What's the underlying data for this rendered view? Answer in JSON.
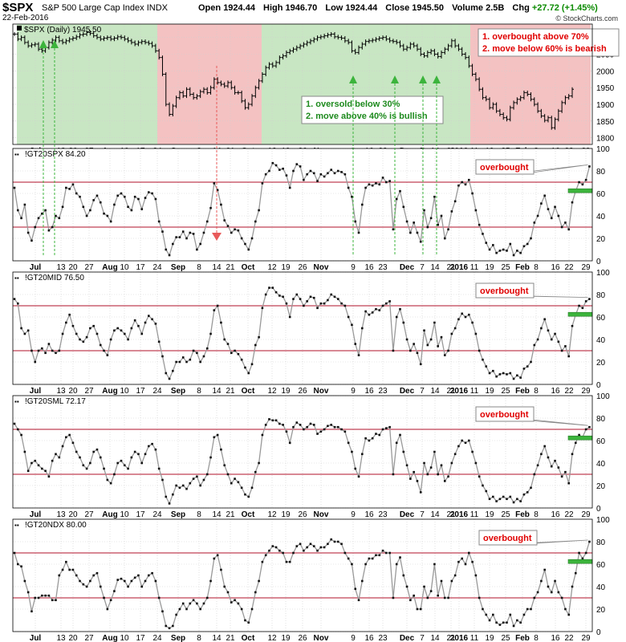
{
  "header": {
    "symbol": "$SPX",
    "name": "S&P 500 Large Cap Index",
    "exchange": "INDX",
    "date": "22-Feb-2016",
    "open_label": "Open",
    "open": "1924.44",
    "high_label": "High",
    "high": "1946.70",
    "low_label": "Low",
    "low": "1924.44",
    "close_label": "Close",
    "close": "1945.50",
    "volume_label": "Volume",
    "volume": "2.5B",
    "chg_label": "Chg",
    "chg": "+27.72 (+1.45%)",
    "credit": "© StockCharts.com"
  },
  "colors": {
    "green_zone": "#c8e6c3",
    "red_zone": "#f4c2c2",
    "ref_line": "#b0102a",
    "series_line": "#999999",
    "marker": "#111111",
    "green_arrow": "#3cb43c",
    "red_arrow": "#e85a5a",
    "callout_text": "#e00000",
    "bullish_text": "#1d8a1d"
  },
  "chart_data": [
    {
      "type": "ohlc",
      "panel": "price",
      "title": "$SPX (Daily) 1945.50",
      "x_tick_labels": [
        "Jul",
        "13",
        "20",
        "27",
        "Aug",
        "10",
        "17",
        "24",
        "Sep",
        "8",
        "14",
        "21",
        "Oct",
        "12",
        "19",
        "26",
        "Nov",
        "9",
        "16",
        "23",
        "Dec",
        "7",
        "14",
        "21",
        "2016",
        "11",
        "19",
        "25",
        "Feb",
        "8",
        "16",
        "22",
        "29"
      ],
      "y_ticks": [
        1800,
        1850,
        1900,
        1950,
        2000,
        2050,
        2100
      ],
      "ylim": [
        1780,
        2140
      ],
      "closes": [
        2110,
        2095,
        2100,
        2085,
        2075,
        2078,
        2080,
        2065,
        2060,
        2070,
        2085,
        2092,
        2100,
        2090,
        2085,
        2090,
        2095,
        2098,
        2102,
        2108,
        2110,
        2115,
        2112,
        2105,
        2100,
        2095,
        2098,
        2100,
        2095,
        2098,
        2102,
        2100,
        2095,
        2090,
        2085,
        2080,
        2085,
        2088,
        2085,
        2082,
        2075,
        2060,
        2040,
        1990,
        1900,
        1870,
        1895,
        1920,
        1935,
        1925,
        1945,
        1930,
        1920,
        1925,
        1938,
        1945,
        1935,
        1950,
        1975,
        1965,
        1960,
        1955,
        1965,
        1950,
        1935,
        1935,
        1910,
        1890,
        1900,
        1925,
        1950,
        1970,
        1990,
        2010,
        2020,
        2015,
        2025,
        2040,
        2045,
        2055,
        2060,
        2065,
        2070,
        2075,
        2080,
        2085,
        2090,
        2095,
        2100,
        2102,
        2105,
        2108,
        2110,
        2102,
        2100,
        2098,
        2090,
        2085,
        2060,
        2055,
        2070,
        2080,
        2088,
        2090,
        2092,
        2095,
        2098,
        2100,
        2095,
        2090,
        2088,
        2085,
        2075,
        2065,
        2070,
        2080,
        2075,
        2065,
        2050,
        2045,
        2055,
        2060,
        2050,
        2043,
        2055,
        2065,
        2075,
        2090,
        2075,
        2065,
        2050,
        2040,
        2015,
        1990,
        1975,
        1945,
        1920,
        1915,
        1890,
        1900,
        1880,
        1870,
        1860,
        1855,
        1890,
        1905,
        1915,
        1920,
        1935,
        1930,
        1915,
        1900,
        1880,
        1865,
        1852,
        1860,
        1830,
        1855,
        1880,
        1905,
        1920,
        1925,
        1945
      ],
      "annotations": [
        "1. oversold below 30%",
        "2. move above 40% is bullish",
        "1. overbought above 70%",
        "2. move below 60% is bearish"
      ]
    },
    {
      "type": "line",
      "panel": "indicator",
      "title": "!GT20SPX 84.20",
      "ylim": [
        0,
        100
      ],
      "y_ticks": [
        0,
        20,
        40,
        60,
        80,
        100
      ],
      "reference_lines": [
        30,
        70
      ],
      "annotation": "overbought",
      "values": [
        65,
        45,
        38,
        50,
        25,
        18,
        30,
        38,
        42,
        45,
        27,
        30,
        40,
        38,
        48,
        65,
        64,
        68,
        60,
        57,
        48,
        40,
        45,
        54,
        58,
        52,
        42,
        40,
        35,
        50,
        58,
        60,
        57,
        48,
        45,
        57,
        55,
        46,
        56,
        61,
        60,
        55,
        35,
        26,
        10,
        5,
        15,
        21,
        21,
        26,
        20,
        25,
        24,
        10,
        15,
        25,
        35,
        47,
        69,
        63,
        50,
        36,
        31,
        25,
        28,
        27,
        20,
        15,
        10,
        20,
        35,
        45,
        69,
        77,
        80,
        87,
        85,
        81,
        82,
        76,
        65,
        80,
        86,
        84,
        72,
        77,
        80,
        78,
        71,
        77,
        75,
        78,
        81,
        78,
        80,
        79,
        77,
        65,
        57,
        35,
        25,
        50,
        65,
        68,
        67,
        69,
        68,
        74,
        70,
        71,
        28,
        55,
        62,
        48,
        35,
        25,
        34,
        25,
        17,
        45,
        30,
        38,
        57,
        32,
        40,
        20,
        28,
        44,
        53,
        67,
        70,
        68,
        72,
        60,
        45,
        32,
        24,
        16,
        10,
        14,
        7,
        9,
        10,
        9,
        15,
        5,
        9,
        7,
        13,
        15,
        20,
        34,
        40,
        51,
        58,
        46,
        38,
        48,
        40,
        30,
        34,
        28,
        52,
        62,
        70,
        68,
        72,
        84
      ]
    },
    {
      "type": "line",
      "panel": "indicator",
      "title": "!GT20MID 76.50",
      "ylim": [
        0,
        100
      ],
      "y_ticks": [
        0,
        20,
        40,
        60,
        80,
        100
      ],
      "reference_lines": [
        30,
        70
      ],
      "annotation": "overbought",
      "values": [
        76,
        72,
        50,
        45,
        48,
        30,
        20,
        30,
        32,
        28,
        36,
        30,
        28,
        30,
        45,
        55,
        62,
        52,
        45,
        40,
        38,
        42,
        50,
        52,
        45,
        35,
        30,
        26,
        40,
        48,
        50,
        48,
        45,
        40,
        50,
        57,
        52,
        45,
        55,
        61,
        58,
        54,
        38,
        25,
        10,
        5,
        12,
        20,
        20,
        24,
        20,
        22,
        30,
        28,
        20,
        25,
        32,
        45,
        66,
        70,
        55,
        40,
        36,
        28,
        30,
        27,
        22,
        15,
        10,
        18,
        35,
        42,
        68,
        80,
        86,
        86,
        82,
        79,
        78,
        72,
        60,
        76,
        80,
        76,
        70,
        74,
        78,
        77,
        68,
        72,
        72,
        75,
        80,
        78,
        76,
        72,
        70,
        60,
        53,
        36,
        26,
        50,
        65,
        62,
        64,
        67,
        66,
        70,
        72,
        74,
        30,
        60,
        67,
        55,
        40,
        30,
        36,
        28,
        18,
        48,
        35,
        40,
        55,
        34,
        42,
        26,
        30,
        45,
        50,
        58,
        63,
        60,
        62,
        55,
        45,
        30,
        22,
        16,
        10,
        12,
        7,
        9,
        10,
        9,
        10,
        5,
        8,
        6,
        14,
        16,
        20,
        35,
        40,
        50,
        58,
        48,
        40,
        45,
        38,
        30,
        34,
        25,
        52,
        62,
        70,
        68,
        74,
        76
      ]
    },
    {
      "type": "line",
      "panel": "indicator",
      "title": "!GT20SML 72.17",
      "ylim": [
        0,
        100
      ],
      "y_ticks": [
        0,
        20,
        40,
        60,
        80,
        100
      ],
      "reference_lines": [
        30,
        70
      ],
      "annotation": "overbought",
      "values": [
        75,
        70,
        65,
        50,
        33,
        40,
        42,
        38,
        35,
        33,
        28,
        42,
        48,
        45,
        55,
        63,
        65,
        58,
        50,
        45,
        38,
        35,
        40,
        50,
        52,
        45,
        35,
        25,
        22,
        30,
        40,
        42,
        38,
        35,
        45,
        50,
        48,
        40,
        48,
        55,
        57,
        52,
        35,
        25,
        10,
        4,
        12,
        20,
        18,
        20,
        17,
        22,
        26,
        28,
        20,
        25,
        30,
        45,
        63,
        65,
        52,
        38,
        30,
        22,
        26,
        23,
        18,
        12,
        10,
        18,
        32,
        40,
        65,
        74,
        79,
        78,
        78,
        75,
        74,
        68,
        58,
        72,
        76,
        74,
        70,
        72,
        75,
        74,
        66,
        68,
        70,
        73,
        74,
        72,
        72,
        70,
        68,
        58,
        50,
        35,
        28,
        48,
        62,
        60,
        62,
        66,
        65,
        70,
        71,
        72,
        30,
        58,
        65,
        50,
        38,
        26,
        32,
        24,
        14,
        40,
        30,
        36,
        50,
        30,
        38,
        24,
        28,
        40,
        48,
        55,
        60,
        58,
        60,
        50,
        40,
        28,
        20,
        15,
        8,
        10,
        6,
        8,
        10,
        8,
        10,
        5,
        8,
        6,
        12,
        14,
        18,
        30,
        38,
        48,
        55,
        45,
        37,
        42,
        36,
        28,
        32,
        22,
        48,
        58,
        65,
        63,
        70,
        72
      ]
    },
    {
      "type": "line",
      "panel": "indicator",
      "title": "!GT20NDX 80.00",
      "ylim": [
        0,
        100
      ],
      "y_ticks": [
        0,
        20,
        40,
        60,
        80,
        100
      ],
      "reference_lines": [
        30,
        70
      ],
      "annotation": "overbought",
      "values": [
        70,
        60,
        58,
        45,
        35,
        18,
        30,
        30,
        32,
        32,
        32,
        28,
        28,
        50,
        55,
        62,
        55,
        55,
        50,
        45,
        42,
        40,
        45,
        50,
        52,
        40,
        30,
        20,
        28,
        36,
        46,
        47,
        45,
        40,
        45,
        48,
        50,
        40,
        45,
        50,
        52,
        45,
        30,
        18,
        5,
        3,
        5,
        15,
        20,
        25,
        20,
        25,
        28,
        25,
        20,
        25,
        30,
        45,
        65,
        68,
        55,
        40,
        35,
        26,
        28,
        25,
        20,
        10,
        8,
        20,
        35,
        45,
        62,
        68,
        72,
        76,
        75,
        72,
        70,
        62,
        62,
        70,
        76,
        78,
        72,
        75,
        78,
        76,
        72,
        75,
        75,
        78,
        82,
        80,
        80,
        78,
        70,
        65,
        60,
        38,
        28,
        45,
        60,
        65,
        65,
        68,
        68,
        72,
        70,
        70,
        30,
        60,
        66,
        50,
        40,
        28,
        32,
        20,
        20,
        40,
        30,
        36,
        60,
        32,
        45,
        30,
        30,
        45,
        50,
        62,
        65,
        60,
        70,
        62,
        50,
        30,
        20,
        15,
        10,
        15,
        8,
        6,
        8,
        8,
        15,
        5,
        10,
        8,
        15,
        20,
        20,
        30,
        35,
        45,
        55,
        40,
        35,
        45,
        35,
        30,
        20,
        15,
        40,
        52,
        70,
        65,
        70,
        80
      ]
    }
  ]
}
